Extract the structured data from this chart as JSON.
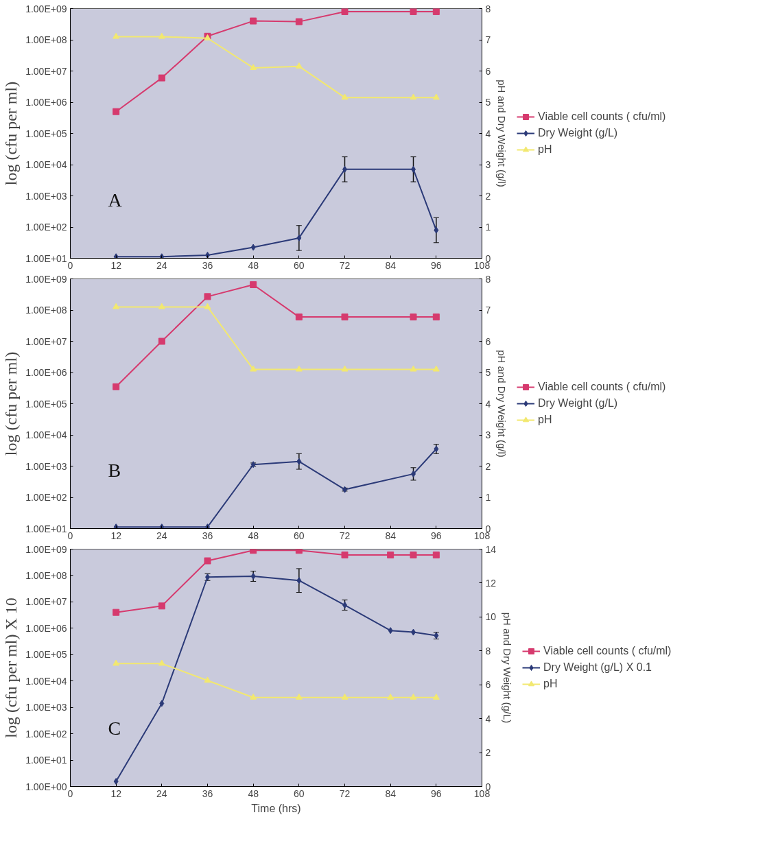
{
  "chart_data": [
    {
      "type": "line",
      "ylabel": "log (cfu per ml)",
      "y2label": "pH and Dry Weight (g/l)",
      "annotations": [
        "A"
      ],
      "log": "y",
      "grid": false,
      "legend": "right",
      "xlim": [
        0,
        108
      ],
      "xticks": [
        0,
        12,
        24,
        36,
        48,
        60,
        72,
        84,
        96,
        108
      ],
      "ylim": [
        10,
        1000000000
      ],
      "yticks": [
        {
          "value": 10,
          "label": "1.00E+01"
        },
        {
          "value": 100,
          "label": "1.00E+02"
        },
        {
          "value": 1000,
          "label": "1.00E+03"
        },
        {
          "value": 10000,
          "label": "1.00E+04"
        },
        {
          "value": 100000,
          "label": "1.00E+05"
        },
        {
          "value": 1000000,
          "label": "1.00E+06"
        },
        {
          "value": 10000000,
          "label": "1.00E+07"
        },
        {
          "value": 100000000,
          "label": "1.00E+08"
        },
        {
          "value": 1000000000,
          "label": "1.00E+09"
        }
      ],
      "y2lim": [
        0,
        8
      ],
      "y2ticks": [
        0,
        1,
        2,
        3,
        4,
        5,
        6,
        7,
        8
      ],
      "series": [
        {
          "name": "Viable cell counts ( cfu/ml)",
          "color": "#d63a6e",
          "marker": "square",
          "x": [
            12,
            24,
            36,
            48,
            60,
            72,
            90,
            96
          ],
          "values": [
            500000,
            6000000,
            130000000,
            400000000,
            380000000,
            800000000,
            800000000,
            800000000
          ]
        },
        {
          "name": "Dry Weight (g/L)",
          "color": "#2b3a78",
          "marker": "diamond",
          "axis": "y2",
          "x": [
            12,
            24,
            36,
            48,
            60,
            72,
            90,
            96
          ],
          "values": [
            0.05,
            0.05,
            0.1,
            0.35,
            0.65,
            2.85,
            2.85,
            0.9
          ],
          "errors": [
            null,
            null,
            null,
            null,
            0.4,
            0.4,
            0.4,
            0.4
          ]
        },
        {
          "name": "pH",
          "color": "#f2e870",
          "marker": "triangle",
          "axis": "y2",
          "x": [
            12,
            24,
            36,
            48,
            60,
            72,
            90,
            96
          ],
          "values": [
            7.1,
            7.1,
            7.05,
            6.1,
            6.15,
            5.15,
            5.15,
            5.15
          ]
        }
      ]
    },
    {
      "type": "line",
      "ylabel": "log (cfu per ml)",
      "y2label": "pH and Dry Weight (g/l)",
      "annotations": [
        "B"
      ],
      "log": "y",
      "grid": false,
      "legend": "right",
      "xlim": [
        0,
        108
      ],
      "xticks": [
        0,
        12,
        24,
        36,
        48,
        60,
        72,
        84,
        96,
        108
      ],
      "ylim": [
        10,
        1000000000
      ],
      "yticks": [
        {
          "value": 10,
          "label": "1.00E+01"
        },
        {
          "value": 100,
          "label": "1.00E+02"
        },
        {
          "value": 1000,
          "label": "1.00E+03"
        },
        {
          "value": 10000,
          "label": "1.00E+04"
        },
        {
          "value": 100000,
          "label": "1.00E+05"
        },
        {
          "value": 1000000,
          "label": "1.00E+06"
        },
        {
          "value": 10000000,
          "label": "1.00E+07"
        },
        {
          "value": 100000000,
          "label": "1.00E+08"
        },
        {
          "value": 1000000000,
          "label": "1.00E+09"
        }
      ],
      "y2lim": [
        0,
        8
      ],
      "y2ticks": [
        0,
        1,
        2,
        3,
        4,
        5,
        6,
        7,
        8
      ],
      "series": [
        {
          "name": "Viable cell counts ( cfu/ml)",
          "color": "#d63a6e",
          "marker": "square",
          "x": [
            12,
            24,
            36,
            48,
            60,
            72,
            90,
            96
          ],
          "values": [
            350000,
            10000000,
            270000000,
            650000000,
            60000000,
            60000000,
            60000000,
            60000000
          ]
        },
        {
          "name": "Dry Weight (g/L)",
          "color": "#2b3a78",
          "marker": "diamond",
          "axis": "y2",
          "x": [
            12,
            24,
            36,
            48,
            60,
            72,
            90,
            96
          ],
          "values": [
            0.05,
            0.05,
            0.05,
            2.05,
            2.15,
            1.25,
            1.75,
            2.55
          ],
          "errors": [
            null,
            null,
            null,
            0.05,
            0.25,
            0.05,
            0.2,
            0.15
          ]
        },
        {
          "name": "pH",
          "color": "#f2e870",
          "marker": "triangle",
          "axis": "y2",
          "x": [
            12,
            24,
            36,
            48,
            60,
            72,
            90,
            96
          ],
          "values": [
            7.1,
            7.1,
            7.1,
            5.1,
            5.1,
            5.1,
            5.1,
            5.1
          ]
        }
      ]
    },
    {
      "type": "line",
      "xlabel": "Time (hrs)",
      "ylabel": "log (cfu per ml) X 10",
      "y2label": "pH and Dry Weight (g/L)",
      "annotations": [
        "C"
      ],
      "log": "y",
      "grid": false,
      "legend": "right",
      "xlim": [
        0,
        108
      ],
      "xticks": [
        0,
        12,
        24,
        36,
        48,
        60,
        72,
        84,
        96,
        108
      ],
      "ylim": [
        1,
        1000000000
      ],
      "yticks": [
        {
          "value": 1,
          "label": "1.00E+00"
        },
        {
          "value": 10,
          "label": "1.00E+01"
        },
        {
          "value": 100,
          "label": "1.00E+02"
        },
        {
          "value": 1000,
          "label": "1.00E+03"
        },
        {
          "value": 10000,
          "label": "1.00E+04"
        },
        {
          "value": 100000,
          "label": "1.00E+05"
        },
        {
          "value": 1000000,
          "label": "1.00E+06"
        },
        {
          "value": 10000000,
          "label": "1.00E+07"
        },
        {
          "value": 100000000,
          "label": "1.00E+08"
        },
        {
          "value": 1000000000,
          "label": "1.00E+09"
        }
      ],
      "y2lim": [
        0,
        14
      ],
      "y2ticks": [
        0,
        2,
        4,
        6,
        8,
        10,
        12,
        14
      ],
      "series": [
        {
          "name": "Viable cell counts ( cfu/ml)",
          "color": "#d63a6e",
          "marker": "square",
          "x": [
            12,
            24,
            36,
            48,
            60,
            72,
            84,
            90,
            96
          ],
          "values": [
            4000000,
            7000000,
            360000000,
            900000000,
            900000000,
            600000000,
            600000000,
            600000000,
            600000000
          ]
        },
        {
          "name": "Dry Weight (g/L) X 0.1",
          "color": "#2b3a78",
          "marker": "diamond",
          "axis": "y2",
          "x": [
            12,
            24,
            36,
            48,
            60,
            72,
            84,
            90,
            96
          ],
          "values": [
            0.3,
            4.9,
            12.35,
            12.4,
            12.15,
            10.7,
            9.2,
            9.1,
            8.9
          ],
          "errors": [
            null,
            null,
            0.2,
            0.3,
            0.7,
            0.3,
            null,
            null,
            0.2
          ]
        },
        {
          "name": "pH",
          "color": "#f2e870",
          "marker": "triangle",
          "axis": "y2",
          "x": [
            12,
            24,
            36,
            48,
            60,
            72,
            84,
            90,
            96
          ],
          "values": [
            7.25,
            7.25,
            6.25,
            5.25,
            5.25,
            5.25,
            5.25,
            5.25,
            5.25
          ]
        }
      ]
    }
  ]
}
